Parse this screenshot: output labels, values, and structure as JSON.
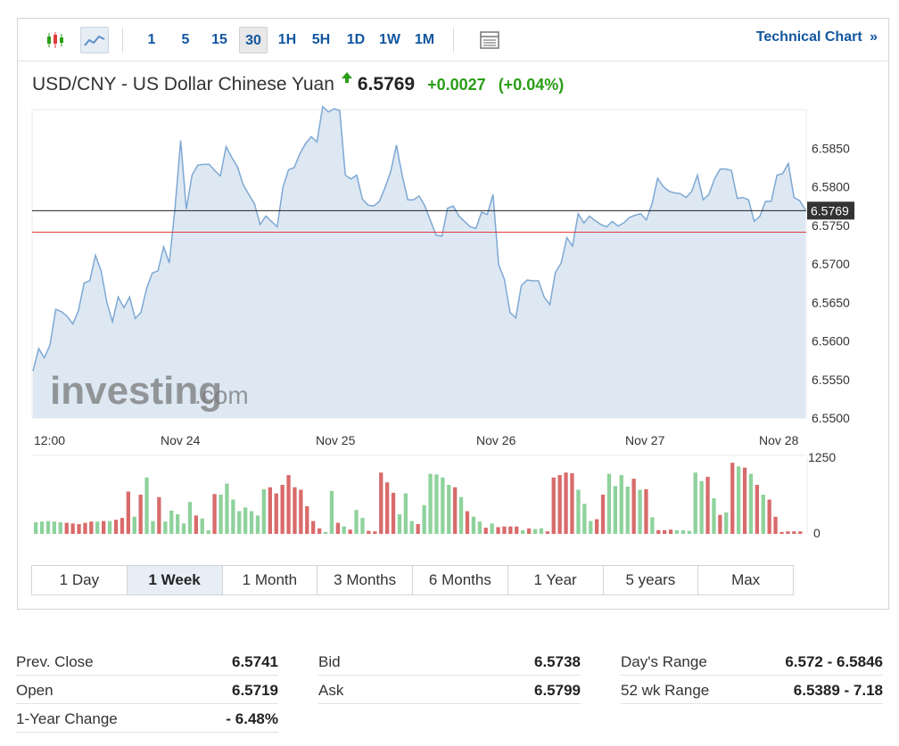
{
  "toolbar": {
    "chart_type_icons": [
      "candlestick-icon",
      "line-chart-icon"
    ],
    "intervals": [
      "1",
      "5",
      "15",
      "30",
      "1H",
      "5H",
      "1D",
      "1W",
      "1M"
    ],
    "active_interval": "30",
    "table_icon": "table-icon",
    "technical_chart": "Technical Chart",
    "technical_chart_arrow": "»"
  },
  "header": {
    "pair": "USD/CNY - US Dollar Chinese Yuan",
    "price": "6.5769",
    "change": "+0.0027",
    "change_pct": "(+0.04%)",
    "direction": "up",
    "up_color": "#2a9d17"
  },
  "watermark": {
    "brand": "investing",
    "suffix": ".com"
  },
  "chart_data": {
    "type": "area",
    "x_tick_labels": [
      "12:00",
      "Nov 24",
      "Nov 25",
      "Nov 26",
      "Nov 27",
      "Nov 28"
    ],
    "y_tick_labels": [
      "6.5850",
      "6.5800",
      "6.5750",
      "6.5700",
      "6.5650",
      "6.5600",
      "6.5550",
      "6.5500"
    ],
    "ylim": [
      6.55,
      6.59
    ],
    "current_price_label": "6.5769",
    "current_price": 6.5769,
    "previous_close": 6.5741,
    "line_color": "#7ea8d3",
    "fill_color": "#dde8f3",
    "previous_close_color": "#e03b3b",
    "series": {
      "values": [
        6.5561,
        6.559,
        6.5578,
        6.5595,
        6.5641,
        6.5638,
        6.5632,
        6.5622,
        6.5639,
        6.5675,
        6.5678,
        6.5711,
        6.5691,
        6.565,
        6.5625,
        6.5657,
        6.5643,
        6.5657,
        6.5629,
        6.5637,
        6.5668,
        6.5688,
        6.5691,
        6.5722,
        6.5701,
        6.5772,
        6.586,
        6.5771,
        6.5815,
        6.5828,
        6.5829,
        6.5829,
        6.5821,
        6.5814,
        6.5852,
        6.5838,
        6.5826,
        6.5803,
        6.579,
        6.5778,
        6.5751,
        6.5762,
        6.5755,
        6.5748,
        6.5799,
        6.5822,
        6.5825,
        6.5843,
        6.5856,
        6.5865,
        6.5858,
        6.5904,
        6.5897,
        6.5901,
        6.5899,
        6.5815,
        6.581,
        6.5815,
        6.5784,
        6.5776,
        6.5775,
        6.5781,
        6.5799,
        6.582,
        6.5854,
        6.5815,
        6.5783,
        6.5783,
        6.5788,
        6.5775,
        6.5756,
        6.5737,
        6.5736,
        6.5772,
        6.5775,
        6.5762,
        6.5755,
        6.5748,
        6.5746,
        6.5767,
        6.5764,
        6.579,
        6.5699,
        6.568,
        6.5637,
        6.563,
        6.5672,
        6.5679,
        6.5678,
        6.5678,
        6.5657,
        6.5647,
        6.5689,
        6.5701,
        6.5734,
        6.5723,
        6.5765,
        6.5753,
        6.5762,
        6.5756,
        6.5751,
        6.5748,
        6.5755,
        6.5749,
        6.5753,
        6.576,
        6.5763,
        6.5765,
        6.5757,
        6.5778,
        6.5811,
        6.58,
        6.5794,
        6.5792,
        6.5791,
        6.5786,
        6.5794,
        6.5815,
        6.5783,
        6.579,
        6.581,
        6.5823,
        6.5823,
        6.5821,
        6.5785,
        6.5786,
        6.5783,
        6.5755,
        6.5762,
        6.5781,
        6.5781,
        6.5815,
        6.5817,
        6.583,
        6.5786,
        6.5782,
        6.577
      ]
    },
    "volume": {
      "ylim": [
        0,
        1250
      ],
      "y_tick_labels": [
        "1250",
        "0"
      ],
      "up_color": "#8ed29c",
      "down_color": "#d96b6b",
      "bars": [
        {
          "v": 190,
          "d": "up"
        },
        {
          "v": 200,
          "d": "up"
        },
        {
          "v": 210,
          "d": "up"
        },
        {
          "v": 200,
          "d": "up"
        },
        {
          "v": 190,
          "d": "up"
        },
        {
          "v": 180,
          "d": "down"
        },
        {
          "v": 170,
          "d": "down"
        },
        {
          "v": 160,
          "d": "down"
        },
        {
          "v": 180,
          "d": "down"
        },
        {
          "v": 200,
          "d": "down"
        },
        {
          "v": 200,
          "d": "up"
        },
        {
          "v": 210,
          "d": "down"
        },
        {
          "v": 210,
          "d": "up"
        },
        {
          "v": 230,
          "d": "down"
        },
        {
          "v": 260,
          "d": "down"
        },
        {
          "v": 690,
          "d": "down"
        },
        {
          "v": 280,
          "d": "up"
        },
        {
          "v": 640,
          "d": "down"
        },
        {
          "v": 920,
          "d": "up"
        },
        {
          "v": 210,
          "d": "up"
        },
        {
          "v": 600,
          "d": "down"
        },
        {
          "v": 200,
          "d": "up"
        },
        {
          "v": 380,
          "d": "up"
        },
        {
          "v": 320,
          "d": "up"
        },
        {
          "v": 170,
          "d": "up"
        },
        {
          "v": 520,
          "d": "up"
        },
        {
          "v": 300,
          "d": "down"
        },
        {
          "v": 250,
          "d": "up"
        },
        {
          "v": 60,
          "d": "up"
        },
        {
          "v": 650,
          "d": "down"
        },
        {
          "v": 640,
          "d": "up"
        },
        {
          "v": 820,
          "d": "up"
        },
        {
          "v": 560,
          "d": "up"
        },
        {
          "v": 370,
          "d": "up"
        },
        {
          "v": 430,
          "d": "up"
        },
        {
          "v": 370,
          "d": "up"
        },
        {
          "v": 300,
          "d": "up"
        },
        {
          "v": 730,
          "d": "up"
        },
        {
          "v": 760,
          "d": "down"
        },
        {
          "v": 660,
          "d": "down"
        },
        {
          "v": 800,
          "d": "down"
        },
        {
          "v": 960,
          "d": "down"
        },
        {
          "v": 760,
          "d": "down"
        },
        {
          "v": 720,
          "d": "down"
        },
        {
          "v": 450,
          "d": "down"
        },
        {
          "v": 210,
          "d": "down"
        },
        {
          "v": 90,
          "d": "down"
        },
        {
          "v": 30,
          "d": "up"
        },
        {
          "v": 700,
          "d": "up"
        },
        {
          "v": 180,
          "d": "down"
        },
        {
          "v": 120,
          "d": "up"
        },
        {
          "v": 70,
          "d": "down"
        },
        {
          "v": 390,
          "d": "up"
        },
        {
          "v": 260,
          "d": "up"
        },
        {
          "v": 50,
          "d": "down"
        },
        {
          "v": 40,
          "d": "down"
        },
        {
          "v": 1000,
          "d": "down"
        },
        {
          "v": 840,
          "d": "down"
        },
        {
          "v": 670,
          "d": "down"
        },
        {
          "v": 320,
          "d": "up"
        },
        {
          "v": 660,
          "d": "up"
        },
        {
          "v": 210,
          "d": "up"
        },
        {
          "v": 160,
          "d": "down"
        },
        {
          "v": 470,
          "d": "up"
        },
        {
          "v": 980,
          "d": "up"
        },
        {
          "v": 970,
          "d": "up"
        },
        {
          "v": 920,
          "d": "up"
        },
        {
          "v": 800,
          "d": "up"
        },
        {
          "v": 760,
          "d": "down"
        },
        {
          "v": 600,
          "d": "up"
        },
        {
          "v": 370,
          "d": "down"
        },
        {
          "v": 280,
          "d": "up"
        },
        {
          "v": 200,
          "d": "up"
        },
        {
          "v": 100,
          "d": "down"
        },
        {
          "v": 170,
          "d": "up"
        },
        {
          "v": 110,
          "d": "down"
        },
        {
          "v": 120,
          "d": "down"
        },
        {
          "v": 120,
          "d": "down"
        },
        {
          "v": 120,
          "d": "down"
        },
        {
          "v": 60,
          "d": "up"
        },
        {
          "v": 90,
          "d": "down"
        },
        {
          "v": 80,
          "d": "up"
        },
        {
          "v": 90,
          "d": "up"
        },
        {
          "v": 40,
          "d": "down"
        },
        {
          "v": 920,
          "d": "down"
        },
        {
          "v": 960,
          "d": "down"
        },
        {
          "v": 1000,
          "d": "down"
        },
        {
          "v": 990,
          "d": "down"
        },
        {
          "v": 720,
          "d": "up"
        },
        {
          "v": 490,
          "d": "up"
        },
        {
          "v": 210,
          "d": "up"
        },
        {
          "v": 240,
          "d": "down"
        },
        {
          "v": 640,
          "d": "down"
        },
        {
          "v": 980,
          "d": "up"
        },
        {
          "v": 780,
          "d": "up"
        },
        {
          "v": 960,
          "d": "up"
        },
        {
          "v": 770,
          "d": "up"
        },
        {
          "v": 900,
          "d": "down"
        },
        {
          "v": 720,
          "d": "up"
        },
        {
          "v": 730,
          "d": "down"
        },
        {
          "v": 270,
          "d": "up"
        },
        {
          "v": 60,
          "d": "down"
        },
        {
          "v": 60,
          "d": "down"
        },
        {
          "v": 70,
          "d": "down"
        },
        {
          "v": 60,
          "d": "up"
        },
        {
          "v": 60,
          "d": "up"
        },
        {
          "v": 50,
          "d": "up"
        },
        {
          "v": 1000,
          "d": "up"
        },
        {
          "v": 860,
          "d": "up"
        },
        {
          "v": 930,
          "d": "down"
        },
        {
          "v": 580,
          "d": "up"
        },
        {
          "v": 310,
          "d": "down"
        },
        {
          "v": 350,
          "d": "up"
        },
        {
          "v": 1160,
          "d": "down"
        },
        {
          "v": 1100,
          "d": "up"
        },
        {
          "v": 1080,
          "d": "down"
        },
        {
          "v": 980,
          "d": "up"
        },
        {
          "v": 800,
          "d": "down"
        },
        {
          "v": 640,
          "d": "up"
        },
        {
          "v": 560,
          "d": "down"
        },
        {
          "v": 280,
          "d": "down"
        },
        {
          "v": 30,
          "d": "down"
        },
        {
          "v": 40,
          "d": "down"
        },
        {
          "v": 40,
          "d": "down"
        },
        {
          "v": 40,
          "d": "down"
        }
      ]
    }
  },
  "ranges": [
    "1 Day",
    "1 Week",
    "1 Month",
    "3 Months",
    "6 Months",
    "1 Year",
    "5 years",
    "Max"
  ],
  "active_range": "1 Week",
  "stats": {
    "col1": [
      {
        "label": "Prev. Close",
        "value": "6.5741"
      },
      {
        "label": "Open",
        "value": "6.5719"
      },
      {
        "label": "1-Year Change",
        "value": "- 6.48%"
      }
    ],
    "col2": [
      {
        "label": "Bid",
        "value": "6.5738"
      },
      {
        "label": "Ask",
        "value": "6.5799"
      }
    ],
    "col3": [
      {
        "label": "Day's Range",
        "value": "6.572 - 6.5846"
      },
      {
        "label": "52 wk Range",
        "value": "6.5389 - 7.18"
      }
    ]
  }
}
